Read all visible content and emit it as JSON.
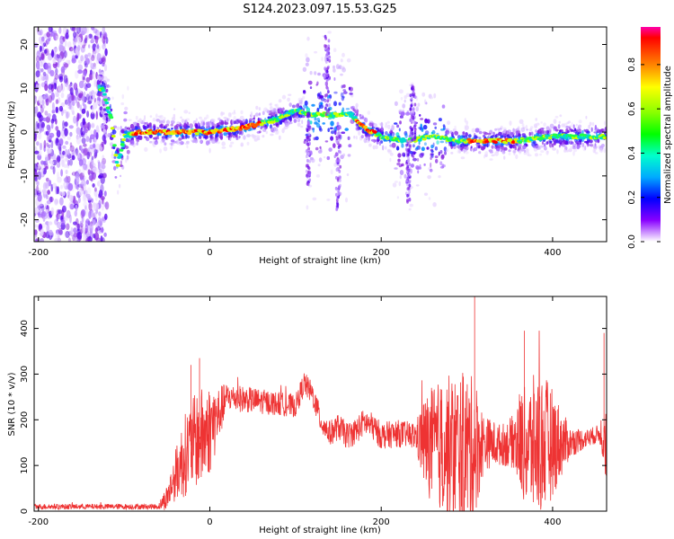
{
  "title": "S124.2023.097.15.53.G25",
  "colors": {
    "snr_line": "#ee3333",
    "axis": "#000000",
    "colorbar": [
      "#ff00aa",
      "#ff0000",
      "#ff8800",
      "#ffff00",
      "#88ff00",
      "#00ff00",
      "#00ffcc",
      "#00aaff",
      "#0000ff",
      "#8800ff",
      "#ffffff"
    ]
  },
  "chart_data": [
    {
      "type": "heatmap",
      "title": "S124.2023.097.15.53.G25",
      "xlabel": "Height of straight line (km)",
      "ylabel": "Frequency (Hz)",
      "xlim": [
        -205,
        463
      ],
      "ylim": [
        -25,
        24
      ],
      "xticks": [
        "-200",
        "0",
        "200",
        "400"
      ],
      "yticks": [
        "-20",
        "-10",
        "0",
        "10",
        "20"
      ],
      "colorbar": {
        "label": "Normalized spectral amplitude",
        "range": [
          0,
          0.97
        ],
        "ticks": [
          "0.0",
          "0.2",
          "0.4",
          "0.6",
          "0.8"
        ]
      },
      "ridge": {
        "x": [
          -125,
          -115,
          -108,
          -100,
          -80,
          -40,
          0,
          40,
          80,
          100,
          120,
          140,
          155,
          165,
          180,
          200,
          230,
          260,
          290,
          320,
          360,
          400,
          430,
          463
        ],
        "y": [
          10,
          3,
          -8,
          -1,
          0,
          0,
          0,
          1,
          3,
          5,
          4,
          4,
          4,
          4,
          1,
          -1,
          -2,
          -1,
          -2,
          -2,
          -2,
          -1,
          -1,
          -1
        ]
      }
    },
    {
      "type": "line",
      "xlabel": "Height of straight line (km)",
      "ylabel": "SNR (10 * v/v)",
      "xlim": [
        -205,
        463
      ],
      "ylim": [
        0,
        470
      ],
      "xticks": [
        "-200",
        "0",
        "200",
        "400"
      ],
      "yticks": [
        "0",
        "100",
        "200",
        "300",
        "400"
      ],
      "envelope": {
        "x": [
          -205,
          -60,
          -50,
          -40,
          -30,
          -20,
          -10,
          0,
          10,
          20,
          40,
          60,
          80,
          100,
          110,
          120,
          130,
          140,
          150,
          160,
          170,
          180,
          190,
          200,
          220,
          240,
          250,
          260,
          280,
          300,
          310,
          320,
          340,
          360,
          370,
          380,
          400,
          420,
          440,
          455,
          463
        ],
        "y": [
          10,
          10,
          30,
          80,
          120,
          150,
          160,
          180,
          210,
          250,
          245,
          240,
          235,
          230,
          280,
          255,
          195,
          170,
          185,
          165,
          175,
          195,
          185,
          165,
          170,
          165,
          150,
          145,
          140,
          135,
          140,
          150,
          145,
          155,
          140,
          145,
          150,
          150,
          160,
          170,
          175
        ]
      },
      "noise_band": {
        "x": [
          -205,
          -60,
          -45,
          -30,
          -10,
          0,
          20,
          100,
          170,
          240,
          250,
          260,
          280,
          300,
          310,
          320,
          340,
          355,
          360,
          380,
          390,
          400,
          420,
          440,
          455,
          463
        ],
        "y": [
          6,
          6,
          40,
          90,
          110,
          100,
          30,
          25,
          30,
          30,
          100,
          130,
          160,
          170,
          150,
          60,
          45,
          60,
          110,
          160,
          150,
          120,
          35,
          20,
          20,
          120
        ]
      }
    }
  ]
}
